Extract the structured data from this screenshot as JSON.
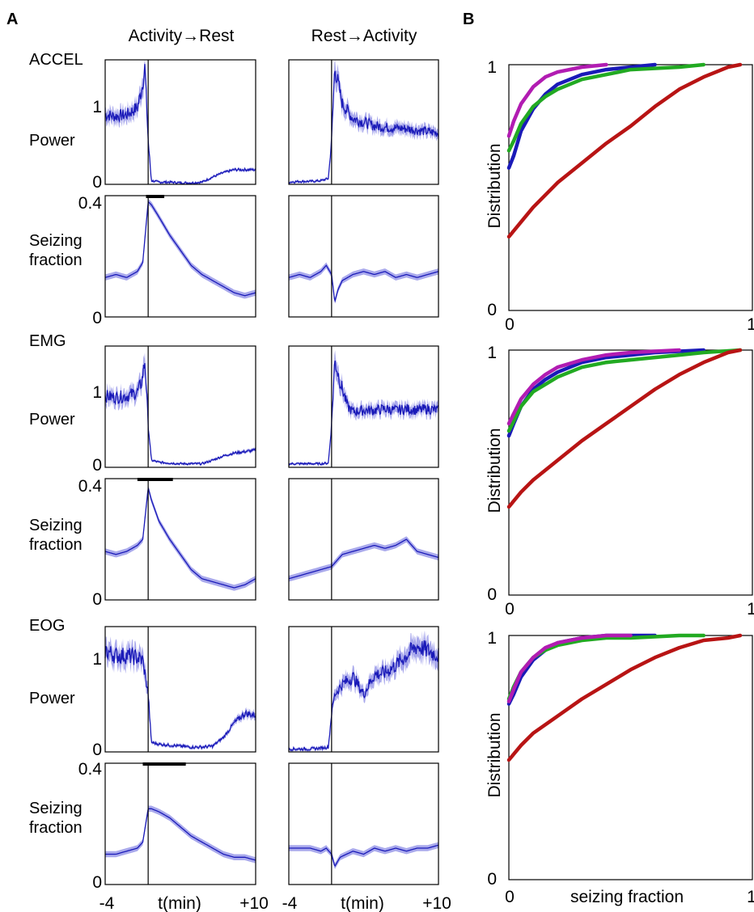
{
  "panel_labels": {
    "a": "A",
    "b": "B"
  },
  "columns": {
    "left": "Activity→Rest",
    "right": "Rest→Activity"
  },
  "modalities": [
    "ACCEL",
    "EMG",
    "EOG"
  ],
  "row_labels": {
    "power": "Power",
    "seizing_line1": "Seizing",
    "seizing_line2": "fraction"
  },
  "ticks": {
    "power_hi": "1",
    "power_lo": "0",
    "sz_hi": "0.4",
    "sz_lo": "0",
    "x_left": "-4",
    "x_mid": "t(min)",
    "x_right": "+10",
    "cdf_y_hi": "1",
    "cdf_y_lo": "0",
    "cdf_x_lo": "0",
    "cdf_x_hi": "1"
  },
  "cdf_ylabel": "Distribution",
  "cdf_xlabel": "seizing fraction",
  "colors": {
    "trace": "#1a1ab8",
    "band": "#8c8ce6",
    "blue": "#1a1ab8",
    "green": "#22aa22",
    "magenta": "#b21cb2",
    "red": "#b81414"
  },
  "chart_data": [
    {
      "type": "line",
      "panel": "A",
      "modality": "ACCEL",
      "kind": "power",
      "transition": "Activity→Rest",
      "x": [
        -4,
        -3,
        -2,
        -1,
        -0.6,
        -0.3,
        0,
        0.3,
        1,
        2,
        3,
        4,
        5,
        6,
        7,
        8,
        9,
        10
      ],
      "y": [
        0.95,
        0.93,
        0.95,
        1.05,
        1.3,
        1.6,
        0.6,
        0.05,
        0.03,
        0.03,
        0.02,
        0.02,
        0.03,
        0.1,
        0.16,
        0.2,
        0.2,
        0.2
      ],
      "xlim": [
        -4,
        10
      ],
      "ylim": [
        0,
        1.7
      ],
      "yticks": [
        0,
        1
      ]
    },
    {
      "type": "line",
      "panel": "A",
      "modality": "ACCEL",
      "kind": "power",
      "transition": "Rest→Activity",
      "x": [
        -4,
        -3,
        -2,
        -1,
        -0.3,
        0,
        0.3,
        1,
        2,
        3,
        4,
        5,
        6,
        7,
        8,
        9,
        10
      ],
      "y": [
        0.03,
        0.04,
        0.04,
        0.05,
        0.08,
        0.6,
        1.6,
        1.1,
        0.9,
        0.85,
        0.8,
        0.78,
        0.77,
        0.76,
        0.74,
        0.72,
        0.7
      ],
      "xlim": [
        -4,
        10
      ],
      "ylim": [
        0,
        1.7
      ],
      "yticks": [
        0,
        1
      ]
    },
    {
      "type": "line",
      "panel": "A",
      "modality": "ACCEL",
      "kind": "seizing fraction",
      "transition": "Activity→Rest",
      "x": [
        -4,
        -3,
        -2,
        -1,
        -0.5,
        0,
        0.3,
        1,
        2,
        3,
        4,
        5,
        6,
        7,
        8,
        9,
        10
      ],
      "y": [
        0.13,
        0.14,
        0.13,
        0.15,
        0.18,
        0.38,
        0.37,
        0.33,
        0.27,
        0.22,
        0.17,
        0.14,
        0.12,
        0.1,
        0.08,
        0.07,
        0.08
      ],
      "xlim": [
        -4,
        10
      ],
      "ylim": [
        0,
        0.4
      ],
      "yticks": [
        0,
        0.4
      ],
      "bar": [
        -0.2,
        1.5
      ]
    },
    {
      "type": "line",
      "panel": "A",
      "modality": "ACCEL",
      "kind": "seizing fraction",
      "transition": "Rest→Activity",
      "x": [
        -4,
        -3,
        -2,
        -1,
        -0.5,
        0,
        0.3,
        0.6,
        1,
        2,
        3,
        4,
        5,
        6,
        7,
        8,
        9,
        10
      ],
      "y": [
        0.13,
        0.14,
        0.13,
        0.15,
        0.17,
        0.14,
        0.05,
        0.09,
        0.12,
        0.14,
        0.15,
        0.14,
        0.15,
        0.13,
        0.14,
        0.13,
        0.14,
        0.15
      ],
      "xlim": [
        -4,
        10
      ],
      "ylim": [
        0,
        0.4
      ],
      "yticks": [
        0,
        0.4
      ]
    },
    {
      "type": "line",
      "panel": "A",
      "modality": "EMG",
      "kind": "power",
      "transition": "Activity→Rest",
      "x": [
        -4,
        -3,
        -2,
        -1,
        -0.6,
        -0.3,
        0,
        0.3,
        1,
        2,
        3,
        4,
        5,
        6,
        7,
        8,
        9,
        10
      ],
      "y": [
        1.0,
        0.98,
        1.0,
        1.05,
        1.2,
        1.5,
        0.6,
        0.1,
        0.07,
        0.06,
        0.05,
        0.05,
        0.05,
        0.1,
        0.16,
        0.2,
        0.22,
        0.24
      ],
      "xlim": [
        -4,
        10
      ],
      "ylim": [
        0,
        1.7
      ],
      "yticks": [
        0,
        1
      ]
    },
    {
      "type": "line",
      "panel": "A",
      "modality": "EMG",
      "kind": "power",
      "transition": "Rest→Activity",
      "x": [
        -4,
        -3,
        -2,
        -1,
        -0.3,
        0,
        0.3,
        0.8,
        1.5,
        2,
        3,
        4,
        5,
        6,
        7,
        8,
        9,
        10
      ],
      "y": [
        0.05,
        0.05,
        0.05,
        0.05,
        0.06,
        0.6,
        1.5,
        1.2,
        0.85,
        0.78,
        0.8,
        0.8,
        0.82,
        0.8,
        0.82,
        0.8,
        0.82,
        0.8
      ],
      "xlim": [
        -4,
        10
      ],
      "ylim": [
        0,
        1.7
      ],
      "yticks": [
        0,
        1
      ]
    },
    {
      "type": "line",
      "panel": "A",
      "modality": "EMG",
      "kind": "seizing fraction",
      "transition": "Activity→Rest",
      "x": [
        -4,
        -3,
        -2,
        -1,
        -0.5,
        0,
        0.3,
        1,
        2,
        3,
        4,
        5,
        6,
        7,
        8,
        9,
        10
      ],
      "y": [
        0.16,
        0.15,
        0.16,
        0.18,
        0.2,
        0.37,
        0.33,
        0.26,
        0.2,
        0.15,
        0.1,
        0.07,
        0.06,
        0.05,
        0.04,
        0.05,
        0.07
      ],
      "xlim": [
        -4,
        10
      ],
      "ylim": [
        0,
        0.4
      ],
      "yticks": [
        0,
        0.4
      ],
      "bar": [
        -1,
        2.3
      ]
    },
    {
      "type": "line",
      "panel": "A",
      "modality": "EMG",
      "kind": "seizing fraction",
      "transition": "Rest→Activity",
      "x": [
        -4,
        -3,
        -2,
        -1,
        0,
        1,
        2,
        3,
        4,
        5,
        6,
        7,
        8,
        9,
        10
      ],
      "y": [
        0.07,
        0.08,
        0.09,
        0.1,
        0.11,
        0.15,
        0.16,
        0.17,
        0.18,
        0.17,
        0.18,
        0.2,
        0.16,
        0.15,
        0.14
      ],
      "xlim": [
        -4,
        10
      ],
      "ylim": [
        0,
        0.4
      ],
      "yticks": [
        0,
        0.4
      ]
    },
    {
      "type": "line",
      "panel": "A",
      "modality": "EOG",
      "kind": "power",
      "transition": "Activity→Rest",
      "x": [
        -4,
        -3,
        -2,
        -1,
        -0.5,
        0,
        0.3,
        1,
        2,
        3,
        4,
        5,
        6,
        7,
        8,
        9,
        10
      ],
      "y": [
        1.05,
        1.0,
        1.0,
        0.98,
        0.95,
        0.6,
        0.1,
        0.08,
        0.07,
        0.06,
        0.05,
        0.05,
        0.06,
        0.15,
        0.3,
        0.4,
        0.38
      ],
      "xlim": [
        -4,
        10
      ],
      "ylim": [
        0,
        1.3
      ],
      "yticks": [
        0,
        1
      ]
    },
    {
      "type": "line",
      "panel": "A",
      "modality": "EOG",
      "kind": "power",
      "transition": "Rest→Activity",
      "x": [
        -4,
        -3,
        -2,
        -1,
        -0.3,
        0,
        0.3,
        1,
        2,
        3,
        4,
        5,
        6,
        7,
        8,
        9,
        10
      ],
      "y": [
        0.03,
        0.03,
        0.03,
        0.04,
        0.05,
        0.4,
        0.6,
        0.7,
        0.78,
        0.6,
        0.8,
        0.82,
        0.9,
        1.0,
        1.1,
        1.05,
        1.0
      ],
      "xlim": [
        -4,
        10
      ],
      "ylim": [
        0,
        1.3
      ],
      "yticks": [
        0,
        1
      ]
    },
    {
      "type": "line",
      "panel": "A",
      "modality": "EOG",
      "kind": "seizing fraction",
      "transition": "Activity→Rest",
      "x": [
        -4,
        -3,
        -2,
        -1,
        -0.5,
        0,
        0.3,
        1,
        2,
        3,
        4,
        5,
        6,
        7,
        8,
        9,
        10
      ],
      "y": [
        0.1,
        0.1,
        0.11,
        0.12,
        0.14,
        0.25,
        0.25,
        0.24,
        0.22,
        0.19,
        0.16,
        0.14,
        0.12,
        0.1,
        0.09,
        0.09,
        0.08
      ],
      "xlim": [
        -4,
        10
      ],
      "ylim": [
        0,
        0.4
      ],
      "yticks": [
        0,
        0.4
      ],
      "bar": [
        -0.5,
        3.5
      ]
    },
    {
      "type": "line",
      "panel": "A",
      "modality": "EOG",
      "kind": "seizing fraction",
      "transition": "Rest→Activity",
      "x": [
        -4,
        -3,
        -2,
        -1,
        -0.5,
        0,
        0.3,
        0.8,
        2,
        3,
        4,
        5,
        6,
        7,
        8,
        9,
        10
      ],
      "y": [
        0.12,
        0.12,
        0.12,
        0.11,
        0.12,
        0.1,
        0.06,
        0.09,
        0.11,
        0.1,
        0.12,
        0.11,
        0.12,
        0.11,
        0.12,
        0.12,
        0.13
      ],
      "xlim": [
        -4,
        10
      ],
      "ylim": [
        0,
        0.4
      ],
      "yticks": [
        0,
        0.4
      ]
    },
    {
      "type": "line",
      "panel": "B",
      "modality": "ACCEL",
      "xlabel": "",
      "ylabel": "Distribution",
      "xlim": [
        0,
        1
      ],
      "ylim": [
        0,
        1
      ],
      "series": [
        {
          "color": "blue",
          "x": [
            0,
            0.02,
            0.05,
            0.1,
            0.15,
            0.2,
            0.3,
            0.4,
            0.5,
            0.6
          ],
          "y": [
            0.58,
            0.63,
            0.73,
            0.82,
            0.88,
            0.92,
            0.96,
            0.98,
            0.99,
            1.0
          ]
        },
        {
          "color": "green",
          "x": [
            0,
            0.02,
            0.05,
            0.1,
            0.15,
            0.2,
            0.3,
            0.4,
            0.5,
            0.7,
            0.8
          ],
          "y": [
            0.65,
            0.69,
            0.76,
            0.83,
            0.87,
            0.9,
            0.94,
            0.96,
            0.98,
            0.99,
            1.0
          ]
        },
        {
          "color": "magenta",
          "x": [
            0,
            0.02,
            0.05,
            0.1,
            0.15,
            0.2,
            0.3,
            0.4
          ],
          "y": [
            0.71,
            0.77,
            0.84,
            0.91,
            0.95,
            0.97,
            0.99,
            1.0
          ]
        },
        {
          "color": "red",
          "x": [
            0,
            0.05,
            0.1,
            0.2,
            0.3,
            0.4,
            0.5,
            0.6,
            0.7,
            0.8,
            0.9,
            0.95
          ],
          "y": [
            0.3,
            0.36,
            0.42,
            0.52,
            0.6,
            0.68,
            0.75,
            0.83,
            0.9,
            0.95,
            0.99,
            1.0
          ]
        }
      ]
    },
    {
      "type": "line",
      "panel": "B",
      "modality": "EMG",
      "xlabel": "",
      "ylabel": "Distribution",
      "xlim": [
        0,
        1
      ],
      "ylim": [
        0,
        1
      ],
      "series": [
        {
          "color": "blue",
          "x": [
            0,
            0.02,
            0.05,
            0.1,
            0.15,
            0.2,
            0.3,
            0.4,
            0.5,
            0.6,
            0.8
          ],
          "y": [
            0.65,
            0.7,
            0.77,
            0.84,
            0.88,
            0.91,
            0.95,
            0.97,
            0.98,
            0.99,
            1.0
          ]
        },
        {
          "color": "green",
          "x": [
            0,
            0.02,
            0.05,
            0.1,
            0.15,
            0.2,
            0.3,
            0.4,
            0.5,
            0.6,
            0.7,
            0.8,
            0.95
          ],
          "y": [
            0.67,
            0.71,
            0.77,
            0.83,
            0.86,
            0.89,
            0.93,
            0.95,
            0.96,
            0.97,
            0.98,
            0.99,
            1.0
          ]
        },
        {
          "color": "magenta",
          "x": [
            0,
            0.02,
            0.05,
            0.1,
            0.15,
            0.2,
            0.3,
            0.4,
            0.5,
            0.7
          ],
          "y": [
            0.7,
            0.74,
            0.8,
            0.86,
            0.9,
            0.93,
            0.96,
            0.98,
            0.99,
            1.0
          ]
        },
        {
          "color": "red",
          "x": [
            0,
            0.05,
            0.1,
            0.2,
            0.3,
            0.4,
            0.5,
            0.6,
            0.7,
            0.8,
            0.9,
            0.95
          ],
          "y": [
            0.36,
            0.42,
            0.47,
            0.55,
            0.63,
            0.7,
            0.77,
            0.84,
            0.9,
            0.95,
            0.99,
            1.0
          ]
        }
      ]
    },
    {
      "type": "line",
      "panel": "B",
      "modality": "EOG",
      "xlabel": "seizing fraction",
      "ylabel": "Distribution",
      "xlim": [
        0,
        1
      ],
      "ylim": [
        0,
        1
      ],
      "series": [
        {
          "color": "blue",
          "x": [
            0,
            0.02,
            0.05,
            0.1,
            0.15,
            0.2,
            0.3,
            0.4,
            0.5,
            0.6
          ],
          "y": [
            0.72,
            0.76,
            0.83,
            0.9,
            0.94,
            0.97,
            0.99,
            1.0,
            1.0,
            1.0
          ]
        },
        {
          "color": "green",
          "x": [
            0,
            0.02,
            0.05,
            0.1,
            0.15,
            0.2,
            0.3,
            0.4,
            0.5,
            0.7,
            0.8
          ],
          "y": [
            0.74,
            0.79,
            0.85,
            0.91,
            0.94,
            0.96,
            0.98,
            0.99,
            0.99,
            1.0,
            1.0
          ]
        },
        {
          "color": "magenta",
          "x": [
            0,
            0.02,
            0.05,
            0.1,
            0.15,
            0.2,
            0.3,
            0.4,
            0.5
          ],
          "y": [
            0.73,
            0.78,
            0.85,
            0.91,
            0.95,
            0.97,
            0.99,
            1.0,
            1.0
          ]
        },
        {
          "color": "red",
          "x": [
            0,
            0.05,
            0.1,
            0.2,
            0.3,
            0.4,
            0.5,
            0.6,
            0.7,
            0.8,
            0.9,
            0.95
          ],
          "y": [
            0.49,
            0.55,
            0.6,
            0.67,
            0.74,
            0.8,
            0.86,
            0.91,
            0.95,
            0.98,
            0.99,
            1.0
          ]
        }
      ]
    }
  ]
}
